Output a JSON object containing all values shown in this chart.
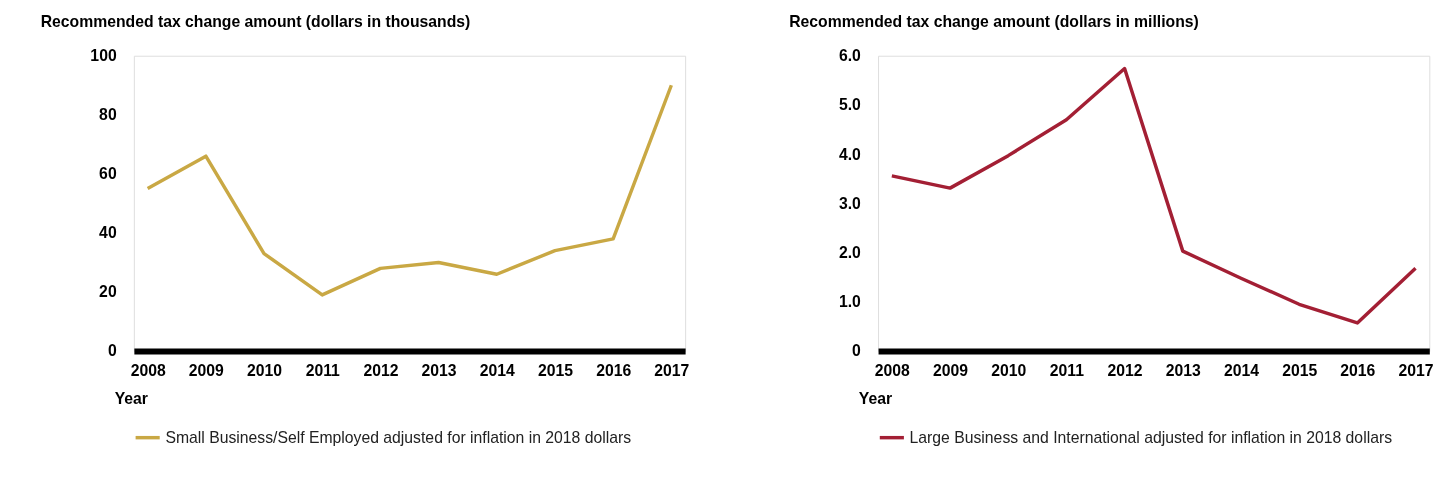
{
  "chart_data": [
    {
      "type": "line",
      "title": "Recommended tax change amount (dollars in thousands)",
      "xlabel": "Year",
      "categories": [
        "2008",
        "2009",
        "2010",
        "2011",
        "2012",
        "2013",
        "2014",
        "2015",
        "2016",
        "2017"
      ],
      "series": [
        {
          "name": "Small Business/Self Employed adjusted for inflation in 2018 dollars",
          "color": "#c9a844",
          "values": [
            55,
            66,
            33,
            19,
            28,
            30,
            26,
            34,
            38,
            90
          ]
        }
      ],
      "ylim": [
        0,
        100
      ],
      "yticks": [
        0,
        20,
        40,
        60,
        80,
        100
      ],
      "grid": false,
      "legend": "bottom",
      "line_style": "solid",
      "marker": "none"
    },
    {
      "type": "line",
      "title": "Recommended tax change amount (dollars in millions)",
      "xlabel": "Year",
      "categories": [
        "2008",
        "2009",
        "2010",
        "2011",
        "2012",
        "2013",
        "2014",
        "2015",
        "2016",
        "2017"
      ],
      "series": [
        {
          "name": "Large Business and International adjusted for inflation in 2018 dollars",
          "color": "#a31f34",
          "values": [
            3.56,
            3.31,
            3.97,
            4.7,
            5.74,
            2.03,
            1.48,
            0.95,
            0.57,
            1.68
          ]
        }
      ],
      "ylim": [
        0,
        6
      ],
      "yticks": [
        0,
        {
          "value": 1,
          "label": "1.0"
        },
        {
          "value": 2,
          "label": "2.0"
        },
        {
          "value": 3,
          "label": "3.0"
        },
        {
          "value": 4,
          "label": "4.0"
        },
        {
          "value": 5,
          "label": "5.0"
        },
        {
          "value": 6,
          "label": "6.0"
        }
      ],
      "grid": false,
      "legend": "bottom",
      "line_style": "solid",
      "marker": "none"
    }
  ]
}
